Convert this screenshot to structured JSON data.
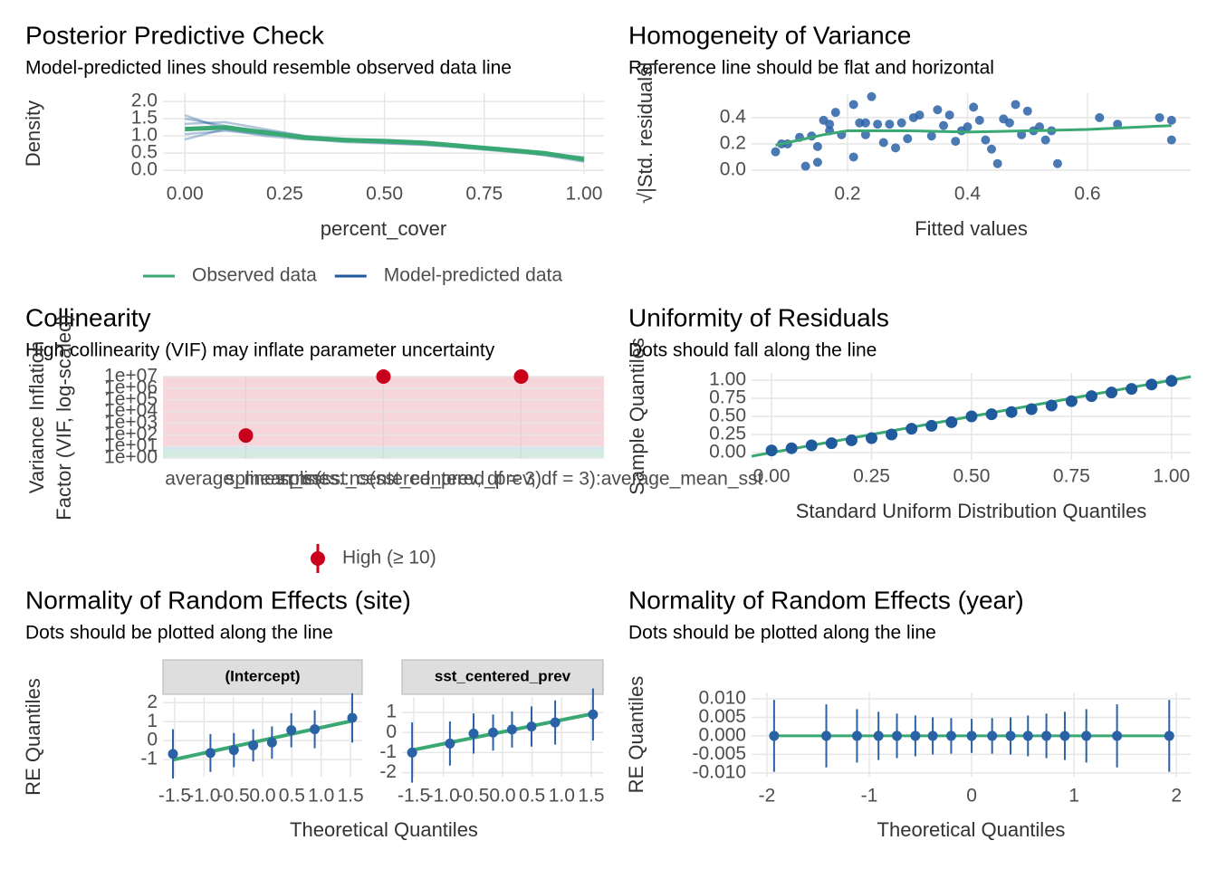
{
  "chart_data": [
    {
      "type": "density",
      "title": "Posterior Predictive Check",
      "subtitle": "Model-predicted lines should resemble observed data line",
      "xlabel": "percent_cover",
      "ylabel": "Density",
      "x": [
        0,
        0.1,
        0.2,
        0.3,
        0.4,
        0.5,
        0.6,
        0.7,
        0.8,
        0.9,
        1
      ],
      "series": [
        {
          "name": "Observed data",
          "color": "#3aa873",
          "values": [
            1.2,
            1.25,
            1.1,
            0.95,
            0.88,
            0.85,
            0.8,
            0.7,
            0.6,
            0.5,
            0.32
          ]
        },
        {
          "name": "Model-predicted data",
          "color": "#1f5a9c",
          "draws": [
            [
              1.35,
              1.4,
              1.2,
              1.0,
              0.85,
              0.8,
              0.75,
              0.65,
              0.55,
              0.45,
              0.3
            ],
            [
              1.05,
              1.15,
              1.05,
              0.95,
              0.9,
              0.88,
              0.82,
              0.72,
              0.62,
              0.5,
              0.35
            ],
            [
              1.5,
              1.3,
              1.1,
              0.92,
              0.82,
              0.78,
              0.74,
              0.68,
              0.58,
              0.48,
              0.28
            ],
            [
              0.9,
              1.2,
              1.15,
              1.0,
              0.92,
              0.85,
              0.78,
              0.7,
              0.6,
              0.5,
              0.38
            ],
            [
              1.6,
              1.2,
              1.0,
              0.9,
              0.86,
              0.84,
              0.8,
              0.72,
              0.6,
              0.44,
              0.25
            ]
          ]
        }
      ],
      "xlim": [
        -0.055,
        1.05
      ],
      "ylim": [
        -0.1,
        2.24
      ],
      "xticks": [
        {
          "value": 0,
          "label": "0.00"
        },
        {
          "value": 0.25,
          "label": "0.25"
        },
        {
          "value": 0.5,
          "label": "0.50"
        },
        {
          "value": 0.75,
          "label": "0.75"
        },
        {
          "value": 1,
          "label": "1.00"
        }
      ],
      "yticks": [
        {
          "value": 0,
          "label": "0.0"
        },
        {
          "value": 0.5,
          "label": "0.5"
        },
        {
          "value": 1,
          "label": "1.0"
        },
        {
          "value": 1.5,
          "label": "1.5"
        },
        {
          "value": 2,
          "label": "2.0"
        }
      ],
      "legend": "bottom",
      "grid": true
    },
    {
      "type": "scatter",
      "title": "Homogeneity of Variance",
      "subtitle": "Reference line should be flat and horizontal",
      "xlabel": "Fitted values",
      "ylabel": "√|Std. residuals|",
      "x": [
        0.08,
        0.09,
        0.1,
        0.12,
        0.13,
        0.14,
        0.15,
        0.15,
        0.16,
        0.17,
        0.17,
        0.18,
        0.19,
        0.21,
        0.21,
        0.22,
        0.23,
        0.23,
        0.24,
        0.25,
        0.26,
        0.27,
        0.28,
        0.29,
        0.3,
        0.31,
        0.32,
        0.34,
        0.35,
        0.36,
        0.37,
        0.38,
        0.39,
        0.4,
        0.41,
        0.42,
        0.43,
        0.44,
        0.45,
        0.46,
        0.47,
        0.48,
        0.49,
        0.5,
        0.51,
        0.52,
        0.53,
        0.54,
        0.55,
        0.62,
        0.65,
        0.72,
        0.74,
        0.74
      ],
      "values": [
        0.14,
        0.2,
        0.2,
        0.25,
        0.03,
        0.26,
        0.18,
        0.06,
        0.38,
        0.35,
        0.3,
        0.44,
        0.27,
        0.1,
        0.5,
        0.36,
        0.36,
        0.27,
        0.56,
        0.35,
        0.21,
        0.35,
        0.17,
        0.36,
        0.24,
        0.4,
        0.42,
        0.26,
        0.46,
        0.34,
        0.42,
        0.22,
        0.3,
        0.33,
        0.48,
        0.38,
        0.23,
        0.16,
        0.05,
        0.39,
        0.36,
        0.5,
        0.27,
        0.45,
        0.3,
        0.33,
        0.23,
        0.3,
        0.05,
        0.4,
        0.35,
        0.4,
        0.38,
        0.23
      ],
      "color": "#2a62a6",
      "smooth": {
        "color": "#3aa873",
        "x": [
          0.08,
          0.12,
          0.16,
          0.2,
          0.3,
          0.4,
          0.5,
          0.6,
          0.74
        ],
        "values": [
          0.19,
          0.23,
          0.27,
          0.3,
          0.3,
          0.29,
          0.3,
          0.31,
          0.34
        ]
      },
      "xlim": [
        0.04,
        0.772
      ],
      "ylim": [
        -0.014,
        0.586
      ],
      "xticks": [
        0.2,
        0.4,
        0.6
      ],
      "yticks": [
        {
          "value": 0,
          "label": "0.0"
        },
        0.2,
        0.4
      ],
      "grid": true
    },
    {
      "type": "dot",
      "title": "Collinearity",
      "subtitle": "High collinearity (VIF) may inflate parameter uncertainty",
      "ylabel": [
        "Variance Inflation",
        "Factor (VIF, log-scaled)"
      ],
      "categories": [
        "average_mean_sst",
        "splines::ns(sst_centered_prev, df = 3)",
        "splines::ns(sst_centered_prev, df = 3):average_mean_sst"
      ],
      "series": [
        {
          "name": "High (≥ 10)",
          "color": "#c9001b",
          "values": [
            87,
            10000000,
            10000000
          ]
        }
      ],
      "bands": [
        {
          "from": 1,
          "to": 5,
          "color": "#d3ebe0"
        },
        {
          "from": 5,
          "to": 10,
          "color": "#d6e4ee"
        },
        {
          "from": 10,
          "to": 10000000,
          "color": "#f6d6da"
        }
      ],
      "log_y": true,
      "ylim": [
        1,
        10000000
      ],
      "yticks": [
        {
          "value": 1,
          "label": "1e+00"
        },
        {
          "value": 10,
          "label": "1e+01"
        },
        {
          "value": 100,
          "label": "1e+02"
        },
        {
          "value": 1000,
          "label": "1e+03"
        },
        {
          "value": 10000,
          "label": "1e+04"
        },
        {
          "value": 100000,
          "label": "1e+05"
        },
        {
          "value": 1000000,
          "label": "1e+06"
        },
        {
          "value": 10000000,
          "label": "1e+07"
        }
      ],
      "legend": "bottom",
      "grid": true
    },
    {
      "type": "qq",
      "title": "Uniformity of Residuals",
      "subtitle": "Dots should fall along the line",
      "xlabel": "Standard Uniform Distribution Quantiles",
      "ylabel": "Sample Quantiles",
      "x": [
        0.0,
        0.05,
        0.1,
        0.15,
        0.2,
        0.25,
        0.3,
        0.35,
        0.4,
        0.45,
        0.5,
        0.55,
        0.6,
        0.65,
        0.7,
        0.75,
        0.8,
        0.85,
        0.9,
        0.95,
        1.0
      ],
      "values": [
        0.03,
        0.06,
        0.1,
        0.13,
        0.17,
        0.2,
        0.25,
        0.33,
        0.37,
        0.42,
        0.5,
        0.53,
        0.56,
        0.6,
        0.65,
        0.71,
        0.78,
        0.83,
        0.88,
        0.94,
        0.99
      ],
      "color": "#1f5a9c",
      "line_color": "#3aa873",
      "xlim": [
        -0.05,
        1.048
      ],
      "ylim": [
        -0.1,
        1.1
      ],
      "xticks": [
        {
          "value": 0,
          "label": "0.00"
        },
        {
          "value": 0.25,
          "label": "0.25"
        },
        {
          "value": 0.5,
          "label": "0.50"
        },
        {
          "value": 0.75,
          "label": "0.75"
        },
        {
          "value": 1,
          "label": "1.00"
        }
      ],
      "yticks": [
        {
          "value": 0,
          "label": "0.00"
        },
        {
          "value": 0.25,
          "label": "0.25"
        },
        {
          "value": 0.5,
          "label": "0.50"
        },
        {
          "value": 0.75,
          "label": "0.75"
        },
        {
          "value": 1,
          "label": "1.00"
        }
      ],
      "grid": true
    },
    {
      "type": "faceted-qq",
      "title": "Normality of Random Effects (site)",
      "subtitle": "Dots should be plotted along the line",
      "xlabel": "Theoretical Quantiles",
      "ylabel": "RE Quantiles",
      "x": [
        -1.53,
        -0.89,
        -0.49,
        -0.16,
        0.16,
        0.49,
        0.89,
        1.53
      ],
      "color": "#2a62a6",
      "line_color": "#3aa873",
      "xlim": [
        -1.7,
        1.7
      ],
      "xticks": [
        -1.5,
        {
          "value": -1,
          "label": "-1.0"
        },
        -0.5,
        {
          "value": 0,
          "label": "0.0"
        },
        0.5,
        {
          "value": 1,
          "label": "1.0"
        },
        1.5
      ],
      "facets": [
        {
          "strip": "(Intercept)",
          "ylim": [
            -1.9,
            2.3
          ],
          "yticks": [
            -1,
            0,
            1,
            2
          ],
          "values": [
            -0.7,
            -0.65,
            -0.5,
            -0.25,
            -0.1,
            0.55,
            0.6,
            1.2
          ],
          "errors": [
            1.3,
            1.0,
            0.9,
            0.85,
            0.85,
            0.9,
            1.0,
            1.3
          ]
        },
        {
          "strip": "sst_centered_prev",
          "ylim": [
            -2.2,
            1.77
          ],
          "yticks": [
            -2,
            -1,
            0,
            1
          ],
          "values": [
            -1.0,
            -0.55,
            -0.05,
            0.0,
            0.15,
            0.3,
            0.5,
            0.9
          ],
          "errors": [
            1.5,
            1.1,
            1.0,
            0.9,
            0.9,
            1.0,
            1.1,
            1.3
          ]
        }
      ],
      "grid": true
    },
    {
      "type": "errorbar",
      "title": "Normality of Random Effects (year)",
      "subtitle": "Dots should be plotted along the line",
      "xlabel": "Theoretical Quantiles",
      "ylabel": "RE Quantiles",
      "x": [
        -1.93,
        -1.42,
        -1.12,
        -0.91,
        -0.73,
        -0.55,
        -0.38,
        -0.2,
        0,
        0.2,
        0.38,
        0.55,
        0.73,
        0.91,
        1.12,
        1.42,
        1.93
      ],
      "values": [
        0,
        0,
        0,
        0,
        0,
        0,
        0,
        0,
        0,
        0,
        0,
        0,
        0,
        0,
        0,
        0,
        0
      ],
      "errors": [
        0.0097,
        0.0085,
        0.0072,
        0.0065,
        0.006,
        0.0055,
        0.005,
        0.0048,
        0.0046,
        0.0048,
        0.005,
        0.0055,
        0.006,
        0.0065,
        0.0072,
        0.0085,
        0.0097
      ],
      "color": "#2a62a6",
      "line_color": "#3aa873",
      "xlim": [
        -2.15,
        2.14
      ],
      "ylim": [
        -0.011,
        0.0117
      ],
      "xticks": [
        -2,
        -1,
        0,
        1,
        2
      ],
      "yticks": [
        {
          "value": -0.01,
          "label": "-0.010"
        },
        {
          "value": -0.005,
          "label": "-0.005"
        },
        {
          "value": 0,
          "label": "0.000"
        },
        {
          "value": 0.005,
          "label": "0.005"
        },
        {
          "value": 0.01,
          "label": "0.010"
        }
      ],
      "grid": true
    }
  ]
}
